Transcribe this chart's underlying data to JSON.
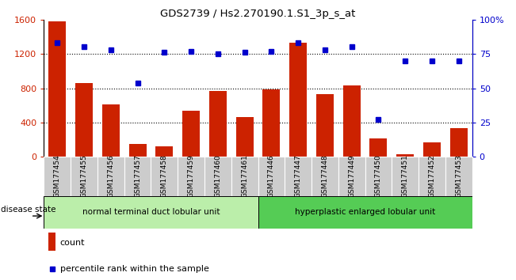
{
  "title": "GDS2739 / Hs2.270190.1.S1_3p_s_at",
  "samples": [
    "GSM177454",
    "GSM177455",
    "GSM177456",
    "GSM177457",
    "GSM177458",
    "GSM177459",
    "GSM177460",
    "GSM177461",
    "GSM177446",
    "GSM177447",
    "GSM177448",
    "GSM177449",
    "GSM177450",
    "GSM177451",
    "GSM177452",
    "GSM177453"
  ],
  "counts": [
    1580,
    860,
    610,
    150,
    120,
    540,
    770,
    460,
    790,
    1330,
    730,
    830,
    210,
    30,
    165,
    330
  ],
  "percentiles": [
    83,
    80,
    78,
    54,
    76,
    77,
    75,
    76,
    77,
    83,
    78,
    80,
    27,
    70,
    70,
    70
  ],
  "group1_label": "normal terminal duct lobular unit",
  "group1_count": 8,
  "group2_label": "hyperplastic enlarged lobular unit",
  "group2_count": 8,
  "bar_color": "#cc2200",
  "dot_color": "#0000cc",
  "group1_bg": "#bbeeaa",
  "group2_bg": "#55cc55",
  "cell_bg": "#cccccc",
  "ylim_left": [
    0,
    1600
  ],
  "ylim_right": [
    0,
    100
  ],
  "yticks_left": [
    0,
    400,
    800,
    1200,
    1600
  ],
  "yticks_right": [
    0,
    25,
    50,
    75,
    100
  ],
  "ytick_labels_right": [
    "0",
    "25",
    "50",
    "75",
    "100%"
  ],
  "legend_count_label": "count",
  "legend_pct_label": "percentile rank within the sample",
  "disease_state_label": "disease state",
  "bar_color_hex": "#cc2200",
  "dot_color_hex": "#0000cc"
}
